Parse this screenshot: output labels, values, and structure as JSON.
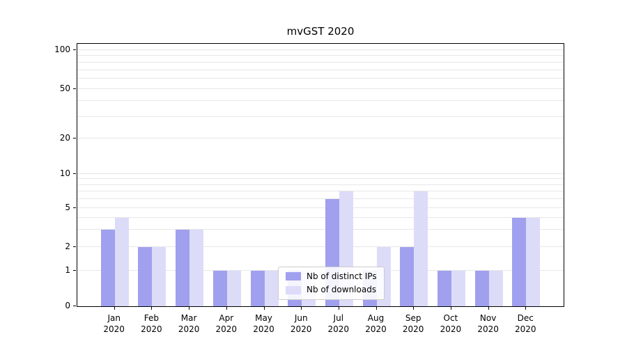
{
  "title": "mvGST 2020",
  "chart_data": {
    "type": "bar",
    "title": "mvGST 2020",
    "scale": "symlog",
    "grid": true,
    "ylim": [
      0,
      100
    ],
    "yticks": [
      100,
      50,
      20,
      10,
      5,
      2,
      1,
      0
    ],
    "legend_position": "lower-center-inside",
    "categories": [
      {
        "label": "Jan",
        "sub": "2020"
      },
      {
        "label": "Feb",
        "sub": "2020"
      },
      {
        "label": "Mar",
        "sub": "2020"
      },
      {
        "label": "Apr",
        "sub": "2020"
      },
      {
        "label": "May",
        "sub": "2020"
      },
      {
        "label": "Jun",
        "sub": "2020"
      },
      {
        "label": "Jul",
        "sub": "2020"
      },
      {
        "label": "Aug",
        "sub": "2020"
      },
      {
        "label": "Sep",
        "sub": "2020"
      },
      {
        "label": "Oct",
        "sub": "2020"
      },
      {
        "label": "Nov",
        "sub": "2020"
      },
      {
        "label": "Dec",
        "sub": "2020"
      }
    ],
    "series": [
      {
        "name": "Nb of distinct IPs",
        "key": "distinct-ips",
        "color": "#a0a0ef",
        "values": [
          3,
          2,
          3,
          1,
          1,
          1,
          6,
          1,
          2,
          1,
          1,
          4
        ]
      },
      {
        "name": "Nb of downloads",
        "key": "downloads",
        "color": "#dcdcf9",
        "values": [
          4,
          2,
          3,
          1,
          1,
          1,
          7,
          2,
          7,
          1,
          1,
          4
        ]
      }
    ]
  },
  "colors": {
    "grid": "#e7e7e7",
    "axis": "#000000",
    "background": "#ffffff"
  }
}
